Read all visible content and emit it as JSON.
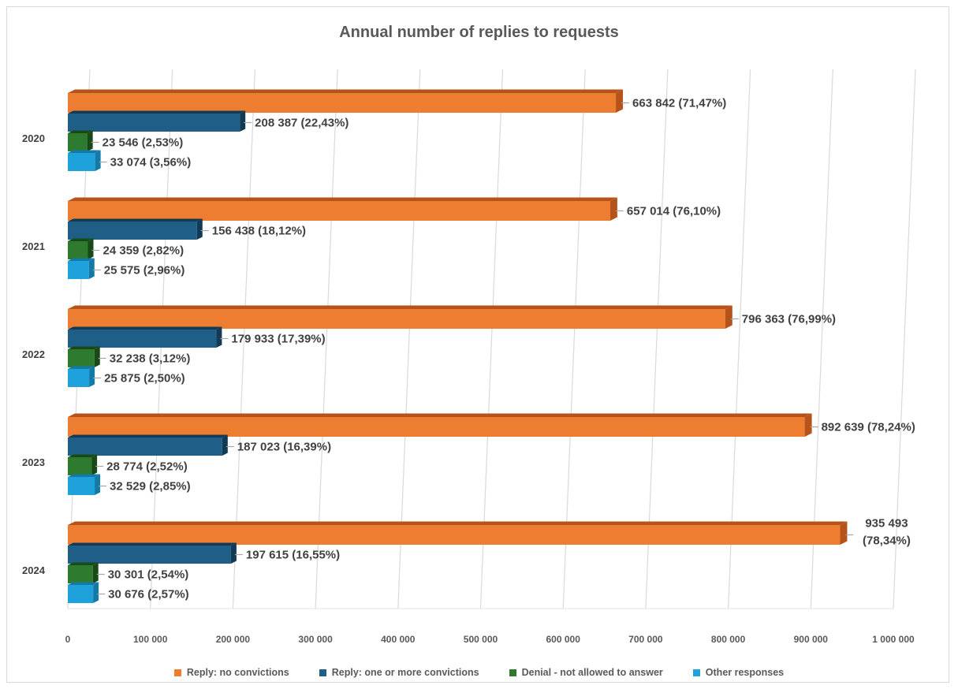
{
  "chart_data": {
    "type": "bar",
    "orientation": "horizontal",
    "style": "3d-clustered",
    "title": "Annual number of replies to requests",
    "categories": [
      "2020",
      "2021",
      "2022",
      "2023",
      "2024"
    ],
    "xlim": [
      0,
      1000000
    ],
    "xticks": [
      0,
      100000,
      200000,
      300000,
      400000,
      500000,
      600000,
      700000,
      800000,
      900000,
      1000000
    ],
    "xtick_labels": [
      "0",
      "100 000",
      "200 000",
      "300 000",
      "400 000",
      "500 000",
      "600 000",
      "700 000",
      "800 000",
      "900 000",
      "1 000 000"
    ],
    "grid": "vertical",
    "legend_position": "bottom",
    "series": [
      {
        "name": "Reply: no convictions",
        "color": "#ed7d31",
        "side_color": "#b5531a",
        "values": [
          663842,
          657014,
          796363,
          892639,
          935493
        ],
        "labels": [
          "663 842 (71,47%)",
          "657 014 (76,10%)",
          "796 363 (76,99%)",
          "892 639 (78,24%)",
          "935 493 (78,34%)"
        ]
      },
      {
        "name": "Reply: one or more convictions",
        "color": "#1f5f87",
        "side_color": "#123a55",
        "values": [
          208387,
          156438,
          179933,
          187023,
          197615
        ],
        "labels": [
          "208 387 (22,43%)",
          "156 438 (18,12%)",
          "179 933 (17,39%)",
          "187 023 (16,39%)",
          "197 615 (16,55%)"
        ]
      },
      {
        "name": "Denial - not allowed to answer",
        "color": "#2e7a2e",
        "side_color": "#184a18",
        "values": [
          23546,
          24359,
          32238,
          28774,
          30301
        ],
        "labels": [
          "23 546 (2,53%)",
          "24 359 (2,82%)",
          "32 238 (3,12%)",
          "28 774 (2,52%)",
          "30 301 (2,54%)"
        ]
      },
      {
        "name": "Other responses",
        "color": "#1fa2db",
        "side_color": "#137aa8",
        "values": [
          33074,
          25575,
          25875,
          32529,
          30676
        ],
        "labels": [
          "33 074 (3,56%)",
          "25 575 (2,96%)",
          "25 875 (2,50%)",
          "32 529 (2,85%)",
          "30 676 (2,57%)"
        ]
      }
    ]
  }
}
